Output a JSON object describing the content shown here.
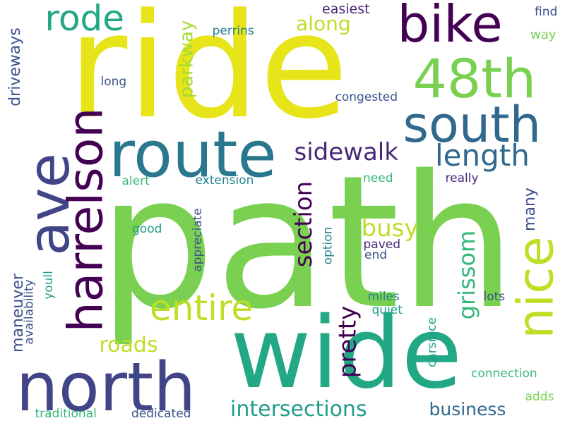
{
  "palette": [
    "#e7e419",
    "#7ad151",
    "#22a884",
    "#2a788e",
    "#414487",
    "#440154",
    "#bddf26",
    "#35b779",
    "#31688e",
    "#482878",
    "#1f9e89",
    "#3b528b",
    "#26828e",
    "#a5db36"
  ],
  "words": [
    {
      "text": "path",
      "color": "#7ad151"
    },
    {
      "text": "ride",
      "color": "#e7e419"
    },
    {
      "text": "wide",
      "color": "#22a884"
    },
    {
      "text": "north",
      "color": "#414487"
    },
    {
      "text": "route",
      "color": "#2a788e"
    },
    {
      "text": "ave",
      "color": "#414487"
    },
    {
      "text": "harrelson",
      "color": "#440154"
    },
    {
      "text": "bike",
      "color": "#440154"
    },
    {
      "text": "48th",
      "color": "#7ad151"
    },
    {
      "text": "south",
      "color": "#31688e"
    },
    {
      "text": "nice",
      "color": "#bddf26"
    },
    {
      "text": "rode",
      "color": "#22a884"
    },
    {
      "text": "entire",
      "color": "#bddf26"
    },
    {
      "text": "length",
      "color": "#31688e"
    },
    {
      "text": "sidewalk",
      "color": "#482878"
    },
    {
      "text": "section",
      "color": "#440154"
    },
    {
      "text": "busy",
      "color": "#bddf26"
    },
    {
      "text": "pretty",
      "color": "#440154"
    },
    {
      "text": "grissom",
      "color": "#35b779"
    },
    {
      "text": "roads",
      "color": "#bddf26"
    },
    {
      "text": "intersections",
      "color": "#1f9e89"
    },
    {
      "text": "business",
      "color": "#31688e"
    },
    {
      "text": "parkway",
      "color": "#a5db36"
    },
    {
      "text": "along",
      "color": "#bddf26"
    },
    {
      "text": "driveways",
      "color": "#3b528b"
    },
    {
      "text": "maneuver",
      "color": "#3b528b"
    },
    {
      "text": "many",
      "color": "#3b528b"
    },
    {
      "text": "easiest",
      "color": "#482878"
    },
    {
      "text": "find",
      "color": "#3b528b"
    },
    {
      "text": "way",
      "color": "#7ad151"
    },
    {
      "text": "perrins",
      "color": "#26828e"
    },
    {
      "text": "long",
      "color": "#3b528b"
    },
    {
      "text": "congested",
      "color": "#3b528b"
    },
    {
      "text": "alert",
      "color": "#35b779"
    },
    {
      "text": "extension",
      "color": "#26828e"
    },
    {
      "text": "need",
      "color": "#35b779"
    },
    {
      "text": "really",
      "color": "#482878"
    },
    {
      "text": "good",
      "color": "#1f9e89"
    },
    {
      "text": "appreciate",
      "color": "#3b528b"
    },
    {
      "text": "option",
      "color": "#26828e"
    },
    {
      "text": "paved",
      "color": "#482878"
    },
    {
      "text": "end",
      "color": "#3b528b"
    },
    {
      "text": "availability",
      "color": "#3b528b"
    },
    {
      "text": "youll",
      "color": "#1f9e89"
    },
    {
      "text": "miles",
      "color": "#26828e"
    },
    {
      "text": "quiet",
      "color": "#1f9e89"
    },
    {
      "text": "lots",
      "color": "#3b528b"
    },
    {
      "text": "carsnice",
      "color": "#1f9e89"
    },
    {
      "text": "connection",
      "color": "#35b779"
    },
    {
      "text": "adds",
      "color": "#7ad151"
    },
    {
      "text": "traditional",
      "color": "#35b779"
    },
    {
      "text": "dedicated",
      "color": "#3b528b"
    }
  ]
}
